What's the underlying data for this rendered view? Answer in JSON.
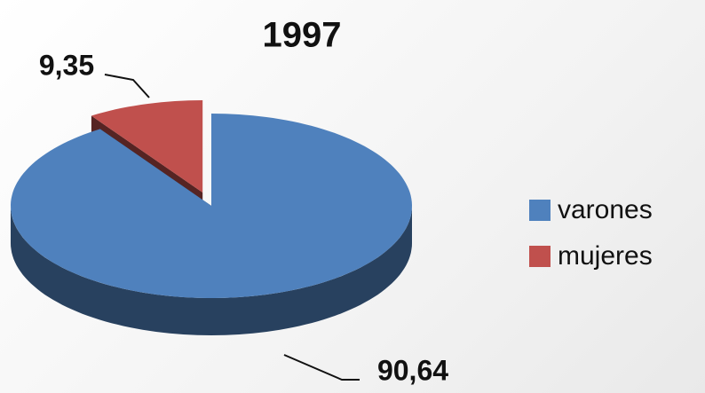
{
  "chart_data": {
    "type": "pie",
    "title": "1997",
    "categories": [
      "varones",
      "mujeres"
    ],
    "values": [
      90.64,
      9.35
    ],
    "value_labels": [
      "90,64",
      "9,35"
    ],
    "colors": [
      "#4f81bd",
      "#c0504d"
    ],
    "legend": "right",
    "style": "3d",
    "exploded": [
      false,
      true
    ]
  }
}
